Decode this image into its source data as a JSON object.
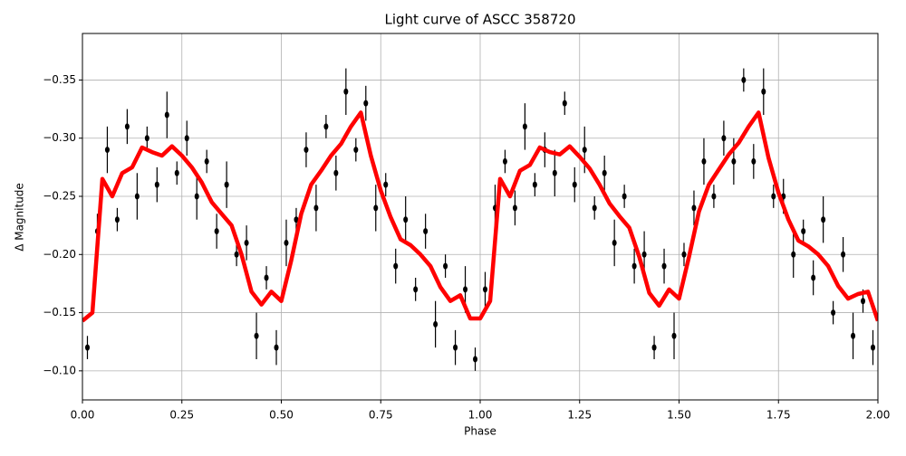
{
  "chart_data": {
    "type": "scatter",
    "title": "Light curve of ASCC 358720",
    "x_label": "Phase",
    "y_label": "Δ Magnitude",
    "x": [
      0.0125,
      0.0375,
      0.0625,
      0.0875,
      0.1125,
      0.1375,
      0.1625,
      0.1875,
      0.2125,
      0.2375,
      0.2625,
      0.2875,
      0.3125,
      0.3375,
      0.3625,
      0.3875,
      0.4125,
      0.4375,
      0.4625,
      0.4875,
      0.5125,
      0.5375,
      0.5625,
      0.5875,
      0.6125,
      0.6375,
      0.6625,
      0.6875,
      0.7125,
      0.7375,
      0.7625,
      0.7875,
      0.8125,
      0.8375,
      0.8625,
      0.8875,
      0.9125,
      0.9375,
      0.9625,
      0.9875,
      1.0125,
      1.0375,
      1.0625,
      1.0875,
      1.1125,
      1.1375,
      1.1625,
      1.1875,
      1.2125,
      1.2375,
      1.2625,
      1.2875,
      1.3125,
      1.3375,
      1.3625,
      1.3875,
      1.4125,
      1.4375,
      1.4625,
      1.4875,
      1.5125,
      1.5375,
      1.5625,
      1.5875,
      1.6125,
      1.6375,
      1.6625,
      1.6875,
      1.7125,
      1.7375,
      1.7625,
      1.7875,
      1.8125,
      1.8375,
      1.8625,
      1.8875,
      1.9125,
      1.9375,
      1.9625,
      1.9875
    ],
    "values": [
      -0.12,
      -0.22,
      -0.29,
      -0.23,
      -0.31,
      -0.25,
      -0.3,
      -0.26,
      -0.32,
      -0.27,
      -0.3,
      -0.25,
      -0.28,
      -0.22,
      -0.26,
      -0.2,
      -0.21,
      -0.13,
      -0.18,
      -0.12,
      -0.21,
      -0.23,
      -0.29,
      -0.24,
      -0.31,
      -0.27,
      -0.34,
      -0.29,
      -0.33,
      -0.24,
      -0.26,
      -0.19,
      -0.23,
      -0.17,
      -0.22,
      -0.14,
      -0.19,
      -0.12,
      -0.17,
      -0.11,
      -0.17,
      -0.24,
      -0.28,
      -0.24,
      -0.31,
      -0.26,
      -0.29,
      -0.27,
      -0.33,
      -0.26,
      -0.29,
      -0.24,
      -0.27,
      -0.21,
      -0.25,
      -0.19,
      -0.2,
      -0.12,
      -0.19,
      -0.13,
      -0.2,
      -0.24,
      -0.28,
      -0.25,
      -0.3,
      -0.28,
      -0.35,
      -0.28,
      -0.34,
      -0.25,
      -0.25,
      -0.2,
      -0.22,
      -0.18,
      -0.23,
      -0.15,
      -0.2,
      -0.13,
      -0.16,
      -0.12
    ],
    "errors": [
      0.01,
      0.015,
      0.02,
      0.01,
      0.015,
      0.02,
      0.01,
      0.015,
      0.02,
      0.01,
      0.015,
      0.02,
      0.01,
      0.015,
      0.02,
      0.01,
      0.015,
      0.02,
      0.01,
      0.015,
      0.02,
      0.01,
      0.015,
      0.02,
      0.01,
      0.015,
      0.02,
      0.01,
      0.015,
      0.02,
      0.01,
      0.015,
      0.02,
      0.01,
      0.015,
      0.02,
      0.01,
      0.015,
      0.02,
      0.01,
      0.015,
      0.02,
      0.01,
      0.015,
      0.02,
      0.01,
      0.015,
      0.02,
      0.01,
      0.015,
      0.02,
      0.01,
      0.015,
      0.02,
      0.01,
      0.015,
      0.02,
      0.01,
      0.015,
      0.02,
      0.01,
      0.015,
      0.02,
      0.01,
      0.015,
      0.02,
      0.01,
      0.015,
      0.02,
      0.01,
      0.015,
      0.02,
      0.01,
      0.015,
      0.02,
      0.01,
      0.015,
      0.02,
      0.01,
      0.015
    ],
    "color": "#000000",
    "fit": {
      "x": [
        0,
        0.025,
        0.05,
        0.075,
        0.1,
        0.125,
        0.15,
        0.175,
        0.2,
        0.225,
        0.25,
        0.275,
        0.3,
        0.325,
        0.35,
        0.375,
        0.4,
        0.425,
        0.45,
        0.475,
        0.5,
        0.525,
        0.55,
        0.575,
        0.6,
        0.625,
        0.65,
        0.675,
        0.7,
        0.725,
        0.75,
        0.775,
        0.8,
        0.825,
        0.85,
        0.875,
        0.9,
        0.925,
        0.95,
        0.975,
        1,
        1.025,
        1.05,
        1.075,
        1.1,
        1.125,
        1.15,
        1.175,
        1.2,
        1.225,
        1.25,
        1.275,
        1.3,
        1.325,
        1.35,
        1.375,
        1.4,
        1.425,
        1.45,
        1.475,
        1.5,
        1.525,
        1.55,
        1.575,
        1.6,
        1.625,
        1.65,
        1.675,
        1.7,
        1.725,
        1.75,
        1.775,
        1.8,
        1.825,
        1.85,
        1.875,
        1.9,
        1.925,
        1.95,
        1.975,
        2
      ],
      "values": [
        -0.143,
        -0.15,
        -0.265,
        -0.25,
        -0.27,
        -0.275,
        -0.292,
        -0.288,
        -0.285,
        -0.293,
        -0.285,
        -0.275,
        -0.262,
        -0.245,
        -0.235,
        -0.225,
        -0.2,
        -0.168,
        -0.157,
        -0.168,
        -0.16,
        -0.195,
        -0.235,
        -0.26,
        -0.272,
        -0.285,
        -0.295,
        -0.31,
        -0.322,
        -0.285,
        -0.255,
        -0.232,
        -0.213,
        -0.208,
        -0.2,
        -0.19,
        -0.172,
        -0.16,
        -0.165,
        -0.145,
        -0.145,
        -0.16,
        -0.265,
        -0.25,
        -0.272,
        -0.277,
        -0.292,
        -0.288,
        -0.286,
        -0.293,
        -0.284,
        -0.274,
        -0.26,
        -0.244,
        -0.233,
        -0.223,
        -0.198,
        -0.167,
        -0.156,
        -0.17,
        -0.162,
        -0.198,
        -0.237,
        -0.26,
        -0.273,
        -0.286,
        -0.296,
        -0.31,
        -0.322,
        -0.283,
        -0.253,
        -0.23,
        -0.212,
        -0.207,
        -0.2,
        -0.19,
        -0.173,
        -0.162,
        -0.166,
        -0.168,
        -0.143
      ],
      "color": "#ff0000"
    },
    "xlim": [
      0,
      2
    ],
    "ylim": [
      -0.075,
      -0.39
    ],
    "xticks": [
      {
        "value": 0,
        "label": "0.00"
      },
      {
        "value": 0.25,
        "label": "0.25"
      },
      {
        "value": 0.5,
        "label": "0.50"
      },
      {
        "value": 0.75,
        "label": "0.75"
      },
      {
        "value": 1,
        "label": "1.00"
      },
      {
        "value": 1.25,
        "label": "1.25"
      },
      {
        "value": 1.5,
        "label": "1.50"
      },
      {
        "value": 1.75,
        "label": "1.75"
      },
      {
        "value": 2,
        "label": "2.00"
      }
    ],
    "yticks": [
      {
        "value": -0.1,
        "label": "−0.10"
      },
      {
        "value": -0.15,
        "label": "−0.15"
      },
      {
        "value": -0.2,
        "label": "−0.20"
      },
      {
        "value": -0.25,
        "label": "−0.25"
      },
      {
        "value": -0.3,
        "label": "−0.30"
      },
      {
        "value": -0.35,
        "label": "−0.35"
      }
    ],
    "grid": true
  }
}
